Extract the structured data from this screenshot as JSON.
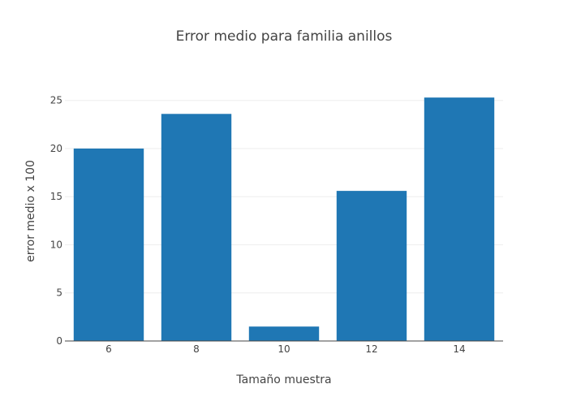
{
  "chart_data": {
    "type": "bar",
    "title": "Error medio para familia anillos",
    "xlabel": "Tamaño muestra",
    "ylabel": "error medio x 100",
    "categories": [
      "6",
      "8",
      "10",
      "12",
      "14"
    ],
    "values": [
      20.0,
      23.6,
      1.5,
      15.6,
      25.3
    ],
    "ylim": [
      0,
      27
    ],
    "yticks": [
      0,
      5,
      10,
      15,
      20,
      25
    ],
    "grid": true,
    "legend": "none",
    "colors": {
      "bar": "#1f77b4"
    }
  }
}
